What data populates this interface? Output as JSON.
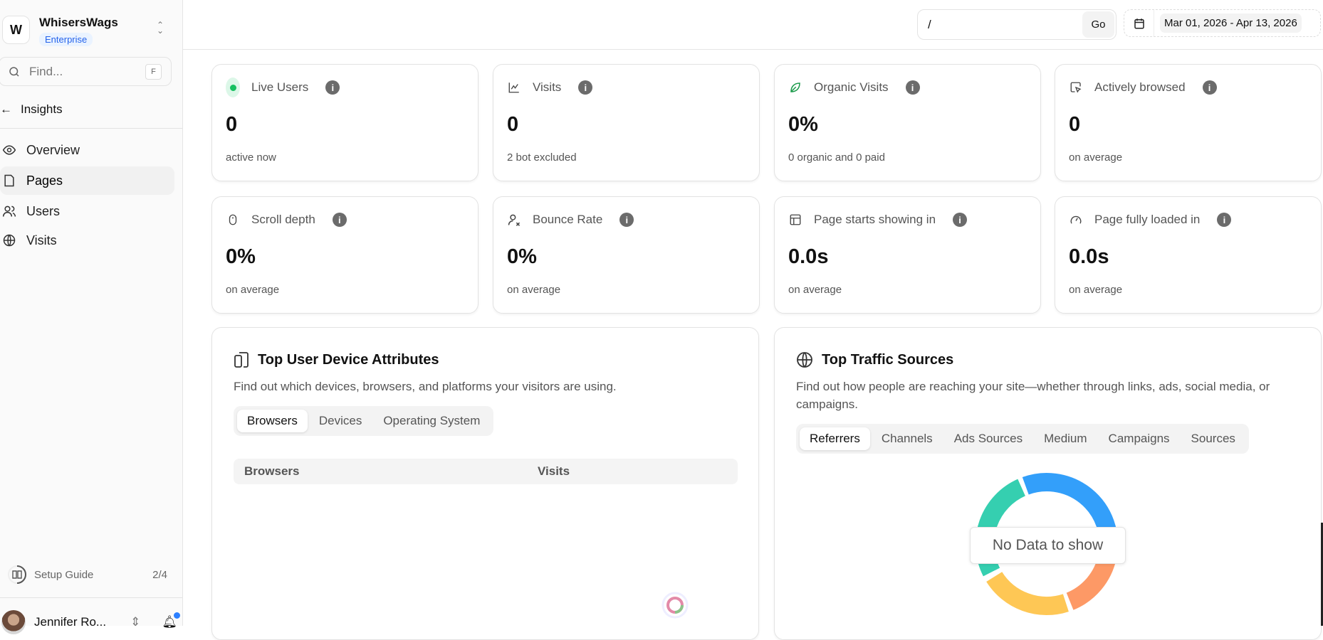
{
  "sidebar": {
    "logo_letter": "W",
    "org_name": "WhisersWags",
    "plan": "Enterprise",
    "find_placeholder": "Find...",
    "find_shortcut": "F",
    "back_label": "Insights",
    "nav": [
      {
        "label": "Overview",
        "icon": "eye-icon"
      },
      {
        "label": "Pages",
        "icon": "file-icon",
        "active": true
      },
      {
        "label": "Users",
        "icon": "users-icon"
      },
      {
        "label": "Visits",
        "icon": "globe-icon"
      }
    ],
    "setup_label": "Setup Guide",
    "setup_progress": "2/4",
    "setup_fraction": 0.5,
    "user_name": "Jennifer Ro..."
  },
  "header": {
    "path_value": "/",
    "go_label": "Go",
    "date_range": "Mar 01, 2026 - Apr 13, 2026"
  },
  "cards": [
    {
      "label": "Live Users",
      "value": "0",
      "sub": "active now",
      "icon": "live-dot-icon"
    },
    {
      "label": "Visits",
      "value": "0",
      "sub": "2 bot excluded",
      "icon": "line-chart-icon"
    },
    {
      "label": "Organic Visits",
      "value": "0%",
      "sub": "0 organic and 0 paid",
      "icon": "leaf-icon"
    },
    {
      "label": "Actively browsed",
      "value": "0",
      "sub": "on average",
      "icon": "cursor-click-icon"
    },
    {
      "label": "Scroll depth",
      "value": "0%",
      "sub": "on average",
      "icon": "mouse-icon"
    },
    {
      "label": "Bounce Rate",
      "value": "0%",
      "sub": "on average",
      "icon": "user-x-icon"
    },
    {
      "label": "Page starts showing in",
      "value": "0.0s",
      "sub": "on average",
      "icon": "layout-icon"
    },
    {
      "label": "Page fully loaded in",
      "value": "0.0s",
      "sub": "on average",
      "icon": "gauge-icon"
    }
  ],
  "devices": {
    "title": "Top User Device Attributes",
    "desc": "Find out which devices, browsers, and platforms your visitors are using.",
    "tabs": [
      "Browsers",
      "Devices",
      "Operating System"
    ],
    "active_tab": 0,
    "columns": [
      "Browsers",
      "Visits"
    ]
  },
  "traffic": {
    "title": "Top Traffic Sources",
    "desc": "Find out how people are reaching your site—whether through links, ads, social media, or campaigns.",
    "tabs": [
      "Referrers",
      "Channels",
      "Ads Sources",
      "Medium",
      "Campaigns",
      "Sources"
    ],
    "active_tab": 0,
    "empty_message": "No Data to show",
    "placeholder_colors": [
      "#339ffa",
      "#fd9966",
      "#fec755",
      "#35cfb0"
    ]
  }
}
